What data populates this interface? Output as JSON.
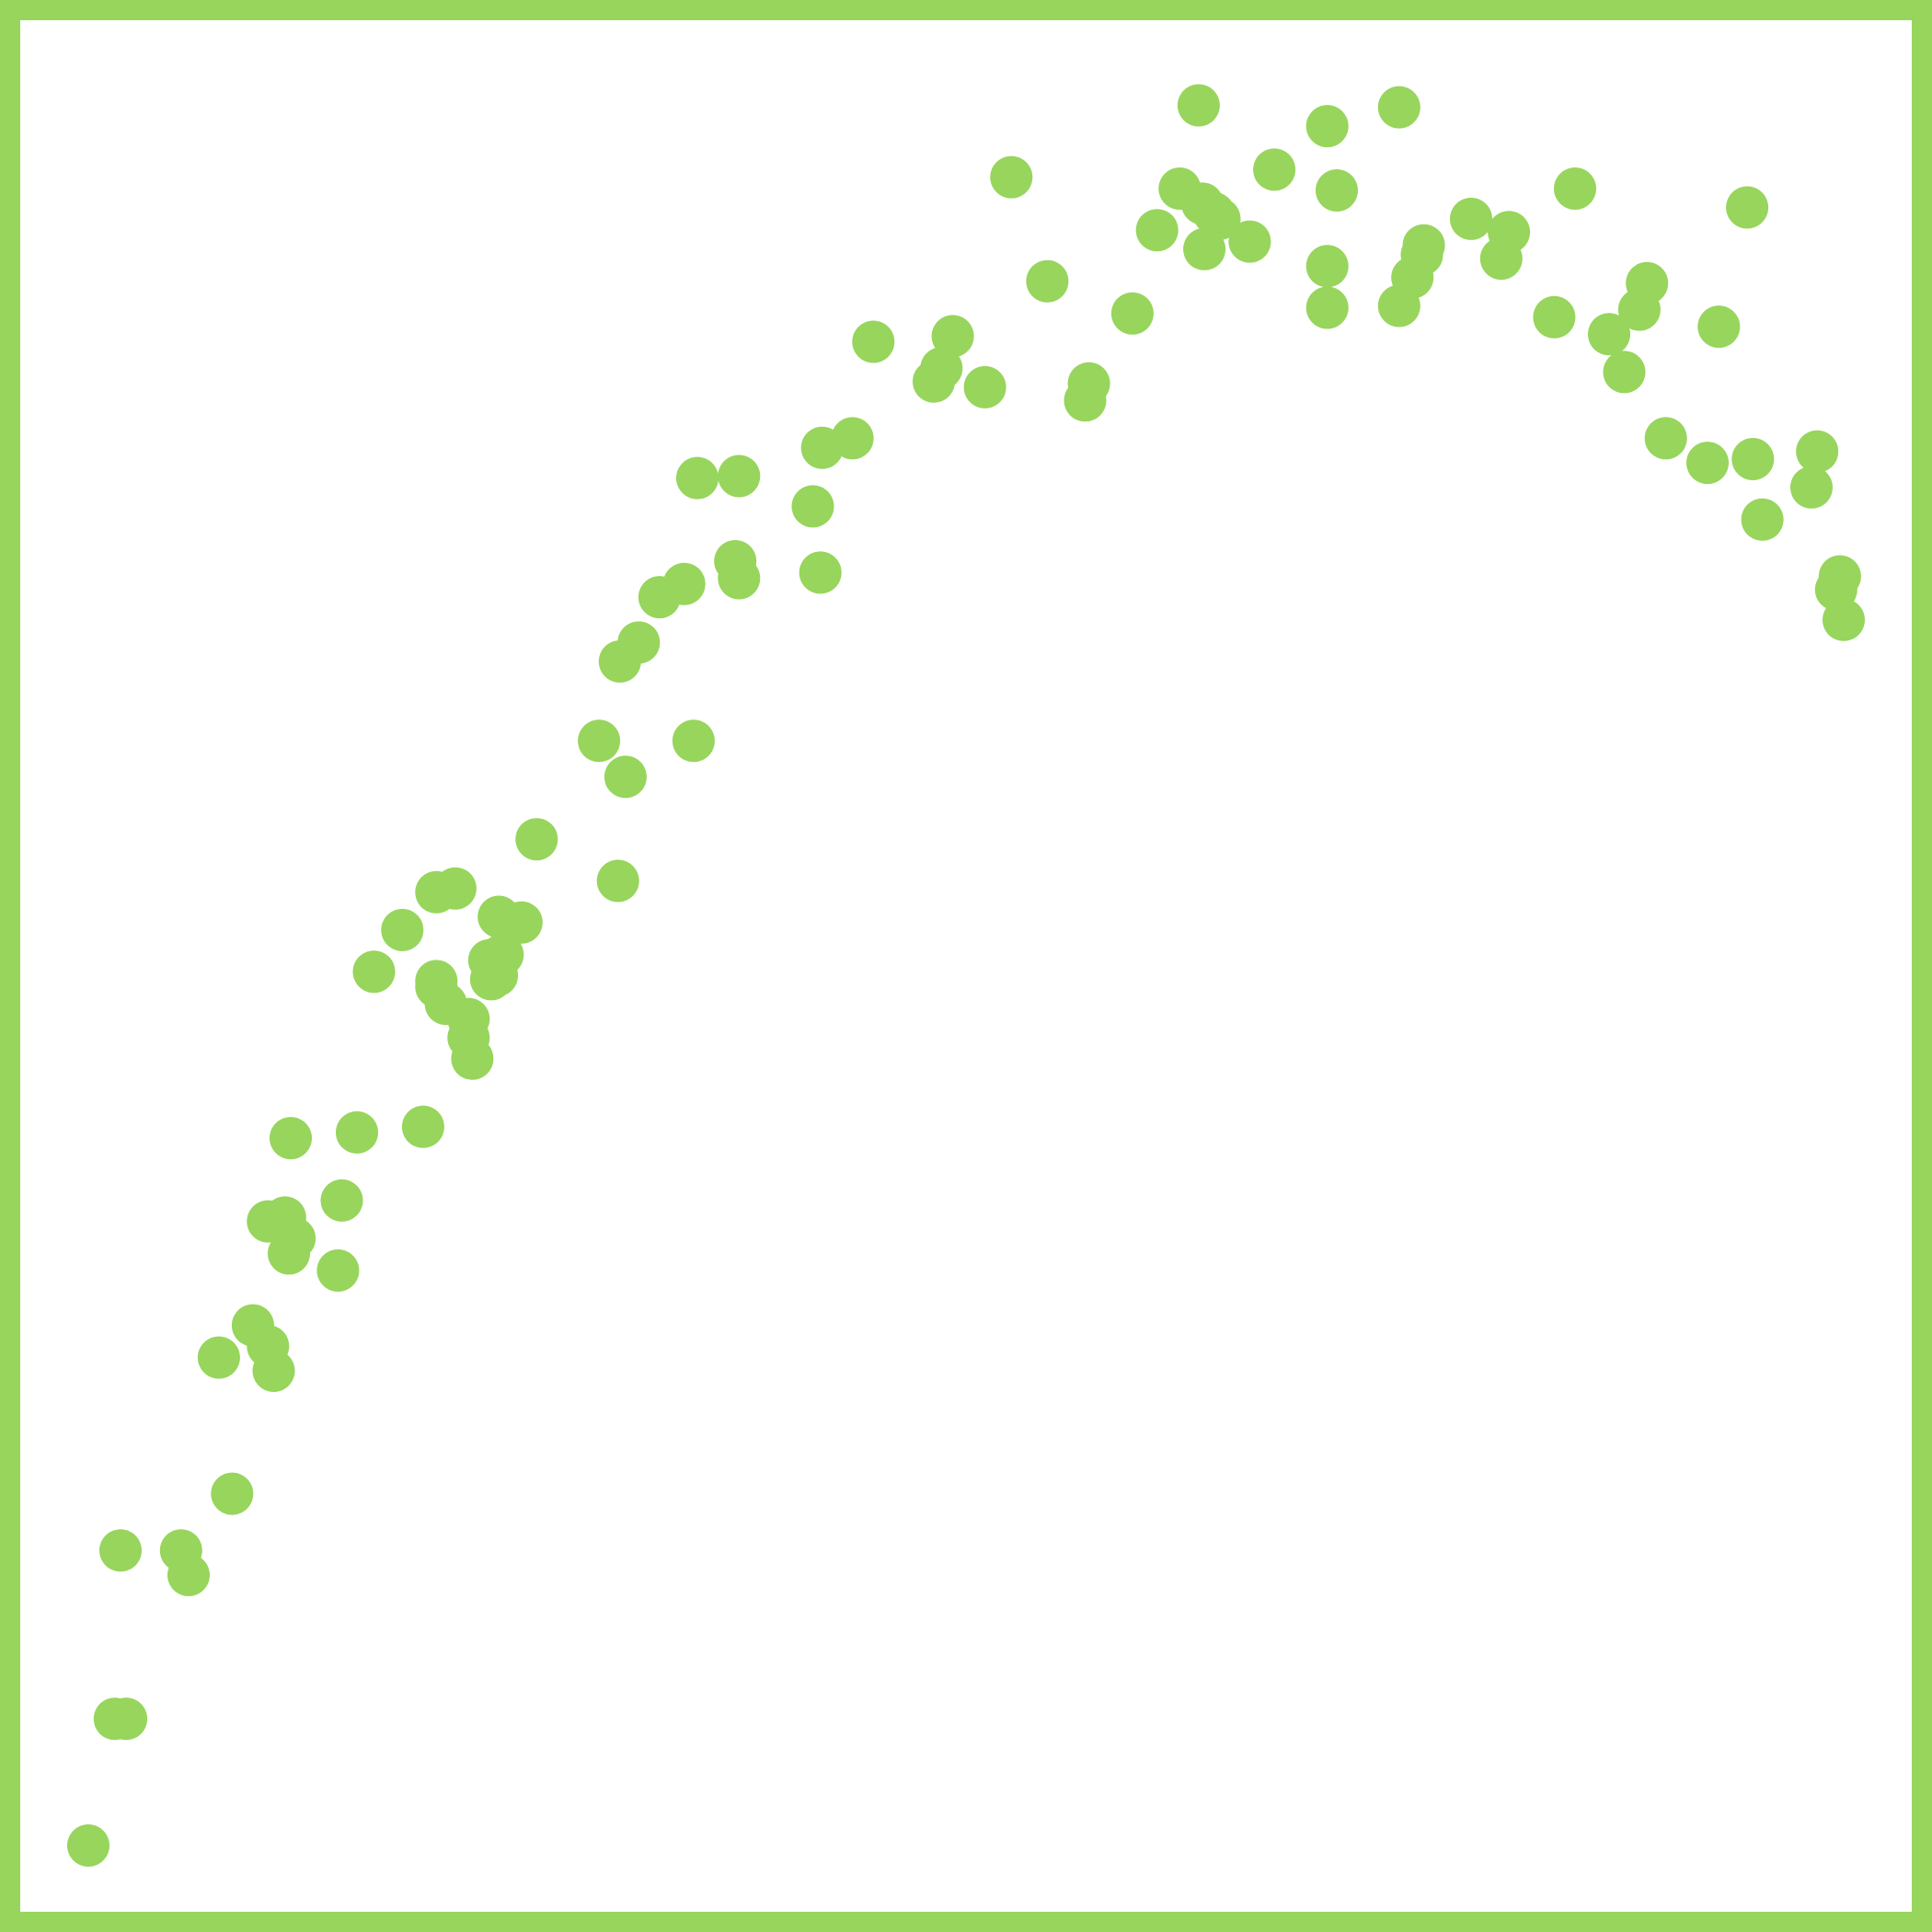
{
  "chart_data": {
    "type": "scatter",
    "title": "",
    "xlabel": "",
    "ylabel": "",
    "xlim": [
      0,
      100
    ],
    "ylim": [
      0,
      100
    ],
    "grid": false,
    "legend": "none",
    "frame_color": "#97d55c",
    "marker_color": "#97d55c",
    "series": [
      {
        "points": [
          [
            3.6,
            3.5
          ],
          [
            5.0,
            10.2
          ],
          [
            5.6,
            10.2
          ],
          [
            5.3,
            19.1
          ],
          [
            8.5,
            19.1
          ],
          [
            8.9,
            17.8
          ],
          [
            11.2,
            22.1
          ],
          [
            10.5,
            29.3
          ],
          [
            12.3,
            31.0
          ],
          [
            13.1,
            29.9
          ],
          [
            13.4,
            28.6
          ],
          [
            13.1,
            36.5
          ],
          [
            14.2,
            34.8
          ],
          [
            14.5,
            35.6
          ],
          [
            14.0,
            36.7
          ],
          [
            16.8,
            33.9
          ],
          [
            17.0,
            37.6
          ],
          [
            14.3,
            40.9
          ],
          [
            17.8,
            41.2
          ],
          [
            21.3,
            41.5
          ],
          [
            18.7,
            49.7
          ],
          [
            20.2,
            51.9
          ],
          [
            22.0,
            48.9
          ],
          [
            22.0,
            49.2
          ],
          [
            22.5,
            48.0
          ],
          [
            23.7,
            46.2
          ],
          [
            23.7,
            47.2
          ],
          [
            23.9,
            45.1
          ],
          [
            24.8,
            50.3
          ],
          [
            24.9,
            49.3
          ],
          [
            25.5,
            50.6
          ],
          [
            25.3,
            52.6
          ],
          [
            26.5,
            52.3
          ],
          [
            25.2,
            49.5
          ],
          [
            22.0,
            53.9
          ],
          [
            23.0,
            54.1
          ],
          [
            27.3,
            56.7
          ],
          [
            31.6,
            54.5
          ],
          [
            32.0,
            60.0
          ],
          [
            30.6,
            61.9
          ],
          [
            35.6,
            61.9
          ],
          [
            31.7,
            66.1
          ],
          [
            32.7,
            67.1
          ],
          [
            33.8,
            69.5
          ],
          [
            35.1,
            70.2
          ],
          [
            37.8,
            71.4
          ],
          [
            38.0,
            70.5
          ],
          [
            35.8,
            75.8
          ],
          [
            38.0,
            75.9
          ],
          [
            42.3,
            70.8
          ],
          [
            41.9,
            74.3
          ],
          [
            42.4,
            77.4
          ],
          [
            44.0,
            77.9
          ],
          [
            45.1,
            83.0
          ],
          [
            48.3,
            80.9
          ],
          [
            48.7,
            81.6
          ],
          [
            49.3,
            83.3
          ],
          [
            51.0,
            80.6
          ],
          [
            52.4,
            91.7
          ],
          [
            54.3,
            86.2
          ],
          [
            56.3,
            79.9
          ],
          [
            56.5,
            80.8
          ],
          [
            58.8,
            84.5
          ],
          [
            60.1,
            88.9
          ],
          [
            61.3,
            91.1
          ],
          [
            62.5,
            90.3
          ],
          [
            63.1,
            89.8
          ],
          [
            63.4,
            89.5
          ],
          [
            62.6,
            87.9
          ],
          [
            65.0,
            88.3
          ],
          [
            62.3,
            95.5
          ],
          [
            66.3,
            92.1
          ],
          [
            69.1,
            94.4
          ],
          [
            69.1,
            84.8
          ],
          [
            69.1,
            87.0
          ],
          [
            69.6,
            91.0
          ],
          [
            72.9,
            95.4
          ],
          [
            72.9,
            84.9
          ],
          [
            73.6,
            86.4
          ],
          [
            74.1,
            87.6
          ],
          [
            74.2,
            88.1
          ],
          [
            76.7,
            89.5
          ],
          [
            78.7,
            88.8
          ],
          [
            78.3,
            87.4
          ],
          [
            82.2,
            91.1
          ],
          [
            81.1,
            84.3
          ],
          [
            84.0,
            83.4
          ],
          [
            85.6,
            84.7
          ],
          [
            86.0,
            86.1
          ],
          [
            84.8,
            81.4
          ],
          [
            87.0,
            77.9
          ],
          [
            89.2,
            76.6
          ],
          [
            89.8,
            83.8
          ],
          [
            91.3,
            90.1
          ],
          [
            91.6,
            76.8
          ],
          [
            92.1,
            73.6
          ],
          [
            94.7,
            75.3
          ],
          [
            95.0,
            77.2
          ],
          [
            96.2,
            70.6
          ],
          [
            96.0,
            69.9
          ],
          [
            96.4,
            68.3
          ]
        ]
      }
    ]
  }
}
